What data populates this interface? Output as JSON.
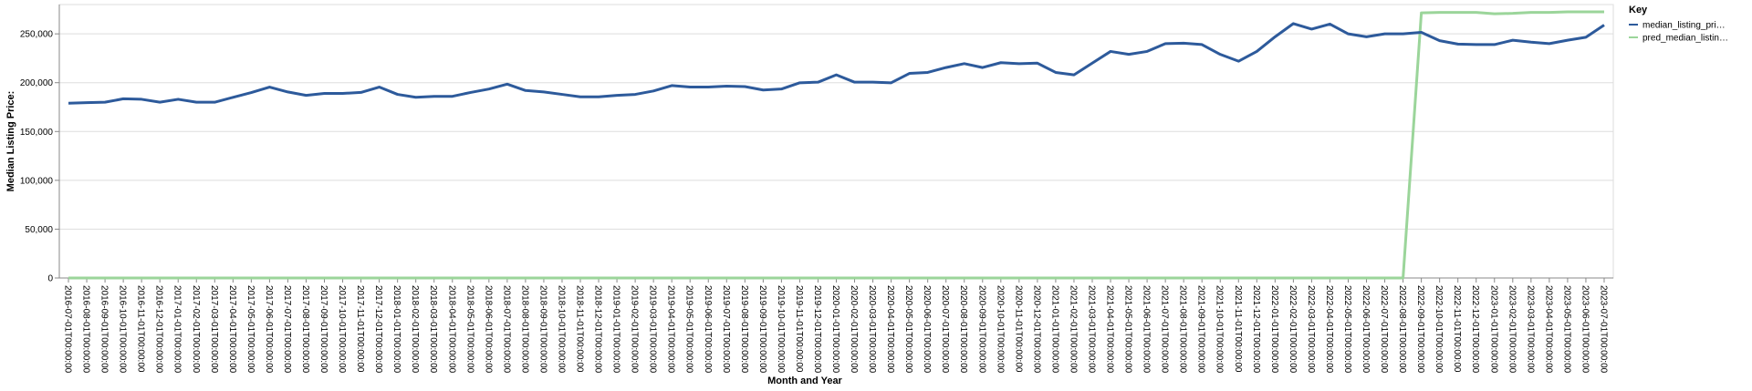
{
  "chart_data": {
    "type": "line",
    "x_label": "Month and Year",
    "y_label": "Median Listing Price:",
    "legend_title": "Key",
    "legend": "top-right",
    "grid": true,
    "categories": [
      "2016-07-01T00:00:00",
      "2016-08-01T00:00:00",
      "2016-09-01T00:00:00",
      "2016-10-01T00:00:00",
      "2016-11-01T00:00:00",
      "2016-12-01T00:00:00",
      "2017-01-01T00:00:00",
      "2017-02-01T00:00:00",
      "2017-03-01T00:00:00",
      "2017-04-01T00:00:00",
      "2017-05-01T00:00:00",
      "2017-06-01T00:00:00",
      "2017-07-01T00:00:00",
      "2017-08-01T00:00:00",
      "2017-09-01T00:00:00",
      "2017-10-01T00:00:00",
      "2017-11-01T00:00:00",
      "2017-12-01T00:00:00",
      "2018-01-01T00:00:00",
      "2018-02-01T00:00:00",
      "2018-03-01T00:00:00",
      "2018-04-01T00:00:00",
      "2018-05-01T00:00:00",
      "2018-06-01T00:00:00",
      "2018-07-01T00:00:00",
      "2018-08-01T00:00:00",
      "2018-09-01T00:00:00",
      "2018-10-01T00:00:00",
      "2018-11-01T00:00:00",
      "2018-12-01T00:00:00",
      "2019-01-01T00:00:00",
      "2019-02-01T00:00:00",
      "2019-03-01T00:00:00",
      "2019-04-01T00:00:00",
      "2019-05-01T00:00:00",
      "2019-06-01T00:00:00",
      "2019-07-01T00:00:00",
      "2019-08-01T00:00:00",
      "2019-09-01T00:00:00",
      "2019-10-01T00:00:00",
      "2019-11-01T00:00:00",
      "2019-12-01T00:00:00",
      "2020-01-01T00:00:00",
      "2020-02-01T00:00:00",
      "2020-03-01T00:00:00",
      "2020-04-01T00:00:00",
      "2020-05-01T00:00:00",
      "2020-06-01T00:00:00",
      "2020-07-01T00:00:00",
      "2020-08-01T00:00:00",
      "2020-09-01T00:00:00",
      "2020-10-01T00:00:00",
      "2020-11-01T00:00:00",
      "2020-12-01T00:00:00",
      "2021-01-01T00:00:00",
      "2021-02-01T00:00:00",
      "2021-03-01T00:00:00",
      "2021-04-01T00:00:00",
      "2021-05-01T00:00:00",
      "2021-06-01T00:00:00",
      "2021-07-01T00:00:00",
      "2021-08-01T00:00:00",
      "2021-09-01T00:00:00",
      "2021-10-01T00:00:00",
      "2021-11-01T00:00:00",
      "2021-12-01T00:00:00",
      "2022-01-01T00:00:00",
      "2022-02-01T00:00:00",
      "2022-03-01T00:00:00",
      "2022-04-01T00:00:00",
      "2022-05-01T00:00:00",
      "2022-06-01T00:00:00",
      "2022-07-01T00:00:00",
      "2022-08-01T00:00:00",
      "2022-09-01T00:00:00",
      "2022-10-01T00:00:00",
      "2022-11-01T00:00:00",
      "2022-12-01T00:00:00",
      "2023-01-01T00:00:00",
      "2023-02-01T00:00:00",
      "2023-03-01T00:00:00",
      "2023-04-01T00:00:00",
      "2023-05-01T00:00:00",
      "2023-06-01T00:00:00",
      "2023-07-01T00:00:00"
    ],
    "series": [
      {
        "name": "median_listing_pri…",
        "color": "#2d5a9b",
        "values": [
          179000,
          179500,
          180000,
          183500,
          183000,
          180000,
          183000,
          180000,
          180000,
          185000,
          189900,
          195500,
          190500,
          187000,
          189000,
          189000,
          190000,
          195500,
          188000,
          185000,
          186000,
          186000,
          190000,
          193500,
          198500,
          192000,
          190500,
          188000,
          185500,
          185500,
          187000,
          188000,
          191500,
          197000,
          195500,
          195500,
          196500,
          196000,
          192500,
          193500,
          199900,
          200500,
          208000,
          200500,
          200500,
          199900,
          209500,
          210500,
          215500,
          219500,
          215500,
          220500,
          219500,
          220000,
          210500,
          208000,
          220000,
          232000,
          229000,
          232000,
          240000,
          240500,
          239000,
          229000,
          222000,
          232000,
          247000,
          260500,
          254900,
          260000,
          250000,
          247000,
          250000,
          250000,
          251500,
          243000,
          239500,
          239000,
          239000,
          243500,
          241500,
          240000,
          243500,
          246500,
          259000
        ]
      },
      {
        "name": "pred_median_listin…",
        "color": "#9bd59a",
        "values": [
          0,
          0,
          0,
          0,
          0,
          0,
          0,
          0,
          0,
          0,
          0,
          0,
          0,
          0,
          0,
          0,
          0,
          0,
          0,
          0,
          0,
          0,
          0,
          0,
          0,
          0,
          0,
          0,
          0,
          0,
          0,
          0,
          0,
          0,
          0,
          0,
          0,
          0,
          0,
          0,
          0,
          0,
          0,
          0,
          0,
          0,
          0,
          0,
          0,
          0,
          0,
          0,
          0,
          0,
          0,
          0,
          0,
          0,
          0,
          0,
          0,
          0,
          0,
          0,
          0,
          0,
          0,
          0,
          0,
          0,
          0,
          0,
          0,
          0,
          271500,
          272000,
          272000,
          272000,
          270500,
          271000,
          272000,
          272000,
          272500,
          272500,
          272500
        ]
      }
    ],
    "ylim": [
      0,
      280000
    ],
    "yticks": [
      0,
      {
        "value": 50000,
        "label": "50,000"
      },
      {
        "value": 100000,
        "label": "100,000"
      },
      {
        "value": 150000,
        "label": "150,000"
      },
      {
        "value": 200000,
        "label": "200,000"
      },
      {
        "value": 250000,
        "label": "250,000"
      }
    ]
  }
}
